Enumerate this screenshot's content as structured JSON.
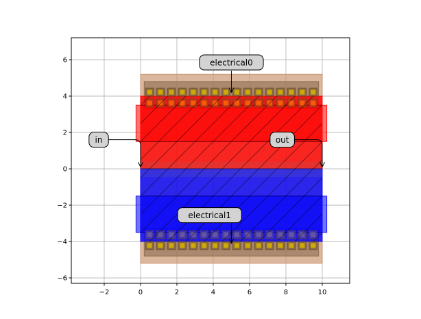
{
  "chart_data": {
    "type": "layout",
    "title": "",
    "xlabel": "",
    "ylabel": "",
    "xlim": [
      -3.81,
      11.51
    ],
    "ylim": [
      -6.3,
      7.21
    ],
    "grid": true,
    "xticks": [
      -2,
      0,
      2,
      4,
      6,
      8,
      10
    ],
    "yticks": [
      -6,
      -4,
      -2,
      0,
      2,
      4,
      6
    ],
    "xtick_labels": [
      "−2",
      "0",
      "2",
      "4",
      "6",
      "8",
      "10"
    ],
    "ytick_labels": [
      "−6",
      "−4",
      "−2",
      "0",
      "2",
      "4",
      "6"
    ],
    "polygons": [
      {
        "name": "heater-metal-outer",
        "x0": 0,
        "x1": 10,
        "y0": -5.2,
        "y1": 5.2,
        "color": "#c8906a",
        "opacity": 0.65
      },
      {
        "name": "heater-metal-top-strip",
        "x0": 0.2,
        "x1": 9.8,
        "y0": 3.3,
        "y1": 4.8,
        "color": "#8a6a50",
        "opacity": 0.6
      },
      {
        "name": "heater-metal-bottom-strip",
        "x0": 0.2,
        "x1": 9.8,
        "y0": -4.8,
        "y1": -3.3,
        "color": "#8a6a50",
        "opacity": 0.6
      },
      {
        "name": "doped-p-region",
        "x0": 0,
        "x1": 10,
        "y0": 0,
        "y1": 4,
        "color": "#ff0000",
        "opacity": 0.8
      },
      {
        "name": "doped-p-contact",
        "x0": -0.25,
        "x1": 10.25,
        "y0": 1.5,
        "y1": 3.5,
        "color": "#ff0000",
        "opacity": 0.55
      },
      {
        "name": "doped-n-region",
        "x0": 0,
        "x1": 10,
        "y0": -4,
        "y1": 0,
        "color": "#0000ff",
        "opacity": 0.8
      },
      {
        "name": "doped-n-contact",
        "x0": -0.25,
        "x1": 10.25,
        "y0": -3.5,
        "y1": -1.5,
        "color": "#0000ff",
        "opacity": 0.55
      }
    ],
    "via_rows": [
      {
        "y": 4.22,
        "count": 16,
        "x_start": 0.5,
        "pitch": 0.6,
        "fill": "#d4b000",
        "frame": "#7a5a30"
      },
      {
        "y": 3.62,
        "count": 16,
        "x_start": 0.5,
        "pitch": 0.6,
        "fill": "#ff6000",
        "frame": "#b04020"
      },
      {
        "y": -3.62,
        "count": 16,
        "x_start": 0.5,
        "pitch": 0.6,
        "fill": "#6a5aa0",
        "frame": "#5040a0"
      },
      {
        "y": -4.22,
        "count": 16,
        "x_start": 0.5,
        "pitch": 0.6,
        "fill": "#d4b000",
        "frame": "#7a5a30"
      }
    ],
    "annotations": [
      {
        "text": "electrical0",
        "x": 5.0,
        "y": 5.85,
        "target_x": 5.0,
        "target_y": 4.2,
        "style": "down"
      },
      {
        "text": "in",
        "x": -2.3,
        "y": 1.6,
        "target_x": 0,
        "target_y": 0.1,
        "style": "right-down"
      },
      {
        "text": "out",
        "x": 7.8,
        "y": 1.6,
        "target_x": 10,
        "target_y": 0.1,
        "style": "right-down"
      },
      {
        "text": "electrical1",
        "x": 3.8,
        "y": -2.55,
        "target_x": 5.0,
        "target_y": -4.1,
        "style": "down"
      }
    ]
  }
}
